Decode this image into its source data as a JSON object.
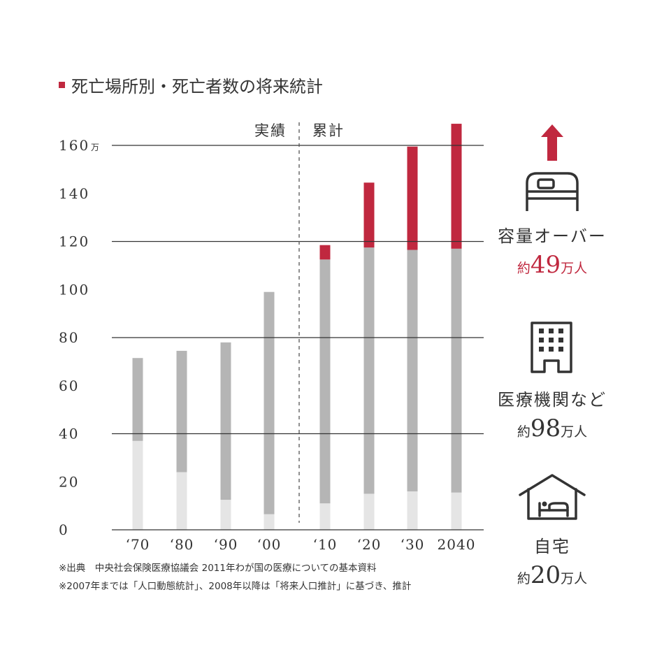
{
  "title": "死亡場所別・死亡者数の将来統計",
  "periods": {
    "actual": "実績",
    "estimate": "累計"
  },
  "chart_data": {
    "type": "bar",
    "stacked": true,
    "categories": [
      "‘70",
      "‘80",
      "‘90",
      "‘00",
      "‘10",
      "‘20",
      "‘30",
      "2040"
    ],
    "y_ticks": [
      "0",
      "20",
      "40",
      "60",
      "80",
      "100",
      "120",
      "140",
      "160"
    ],
    "y_unit": "万",
    "ylim": [
      0,
      160
    ],
    "grid": "horizontal",
    "series": [
      {
        "name": "自宅",
        "color": "#e5e5e5",
        "values": [
          37,
          24,
          12.5,
          6.5,
          11,
          15,
          16,
          15.5
        ]
      },
      {
        "name": "医療機関など",
        "color": "#b5b5b5",
        "values": [
          34.5,
          50.5,
          65.5,
          92.5,
          101.5,
          102.5,
          100.5,
          101.5
        ]
      },
      {
        "name": "容量オーバー",
        "color": "#c0283f",
        "values": [
          0,
          0,
          0,
          0,
          6,
          27,
          43,
          52
        ]
      }
    ]
  },
  "legend": [
    {
      "icon": "up-arrow-bed-icon",
      "label": "容量オーバー",
      "prefix": "約",
      "number": "49",
      "suffix": "万人",
      "accent": true
    },
    {
      "icon": "building-icon",
      "label": "医療機関など",
      "prefix": "約",
      "number": "98",
      "suffix": "万人",
      "accent": false
    },
    {
      "icon": "house-icon",
      "label": "自宅",
      "prefix": "約",
      "number": "20",
      "suffix": "万人",
      "accent": false
    }
  ],
  "notes": [
    "※出典　中央社会保険医療協議会 2011年わが国の医療についての基本資料",
    "※2007年までは「人口動態統計」、2008年以降は「将来人口推計」に基づき、推計"
  ],
  "colors": {
    "accent": "#c0283f",
    "mid_gray": "#b5b5b5",
    "light_gray": "#e5e5e5",
    "text": "#333333"
  }
}
